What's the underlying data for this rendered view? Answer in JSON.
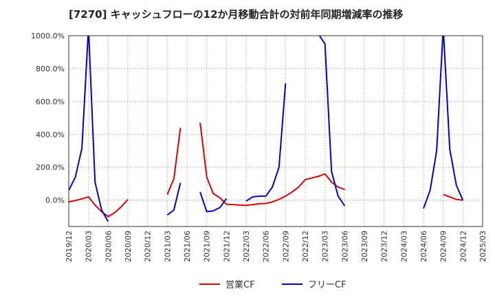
{
  "chart_data": {
    "type": "line",
    "title": "[7270]  キャッシュフローの12か月移動合計の対前年同期増減率の推移",
    "xlabel": "",
    "ylabel": "",
    "ylim": [
      -160,
      1000
    ],
    "y_ticks": [
      0,
      200,
      400,
      600,
      800,
      1000
    ],
    "y_tick_labels": [
      "0.0%",
      "200.0%",
      "400.0%",
      "600.0%",
      "800.0%",
      "1000.0%"
    ],
    "x_tick_labels": [
      "2019/12",
      "2020/03",
      "2020/06",
      "2020/09",
      "2020/12",
      "2021/03",
      "2021/06",
      "2021/09",
      "2021/12",
      "2022/03",
      "2022/06",
      "2022/09",
      "2022/12",
      "2023/03",
      "2023/06",
      "2023/09",
      "2023/12",
      "2024/03",
      "2024/06",
      "2024/09",
      "2024/12",
      "2025/03"
    ],
    "grid": true,
    "legend_position": "bottom-center",
    "x": [
      "2019/12",
      "2020/01",
      "2020/02",
      "2020/03",
      "2020/04",
      "2020/05",
      "2020/06",
      "2020/07",
      "2020/08",
      "2020/09",
      "2020/10",
      "2020/11",
      "2020/12",
      "2021/01",
      "2021/02",
      "2021/03",
      "2021/04",
      "2021/05",
      "2021/06",
      "2021/07",
      "2021/08",
      "2021/09",
      "2021/10",
      "2021/11",
      "2021/12",
      "2022/01",
      "2022/02",
      "2022/03",
      "2022/04",
      "2022/05",
      "2022/06",
      "2022/07",
      "2022/08",
      "2022/09",
      "2022/10",
      "2022/11",
      "2022/12",
      "2023/01",
      "2023/02",
      "2023/03",
      "2023/04",
      "2023/05",
      "2023/06",
      "2023/07",
      "2023/08",
      "2023/09",
      "2023/10",
      "2023/11",
      "2023/12",
      "2024/01",
      "2024/02",
      "2024/03",
      "2024/04",
      "2024/05",
      "2024/06",
      "2024/07",
      "2024/08",
      "2024/09",
      "2024/10",
      "2024/11",
      "2024/12"
    ],
    "series": [
      {
        "name": "営業CF",
        "color": "#dd0000",
        "values": [
          -10,
          -2,
          8,
          20,
          -30,
          -70,
          -100,
          -75,
          -40,
          5,
          null,
          null,
          35,
          null,
          null,
          35,
          130,
          440,
          null,
          null,
          470,
          140,
          40,
          15,
          -25,
          -27,
          -30,
          -32,
          -27,
          -22,
          -20,
          -10,
          5,
          25,
          50,
          80,
          125,
          135,
          145,
          160,
          110,
          80,
          65,
          null,
          null,
          65,
          null,
          null,
          50,
          null,
          null,
          55,
          null,
          null,
          40,
          null,
          null,
          35,
          20,
          5,
          0
        ]
      },
      {
        "name": "フリーCF",
        "color": "#0000cc",
        "values": [
          60,
          140,
          315,
          1050,
          110,
          -60,
          -130,
          null,
          null,
          -50,
          null,
          null,
          -90,
          null,
          null,
          -90,
          -60,
          105,
          null,
          null,
          50,
          -70,
          -65,
          -45,
          10,
          null,
          null,
          -5,
          20,
          25,
          25,
          80,
          200,
          710,
          null,
          null,
          1040,
          1050,
          1010,
          950,
          175,
          25,
          -35,
          null,
          null,
          -90,
          null,
          null,
          -45,
          null,
          null,
          -60,
          null,
          null,
          -50,
          60,
          300,
          1050,
          310,
          90,
          0
        ]
      }
    ]
  }
}
